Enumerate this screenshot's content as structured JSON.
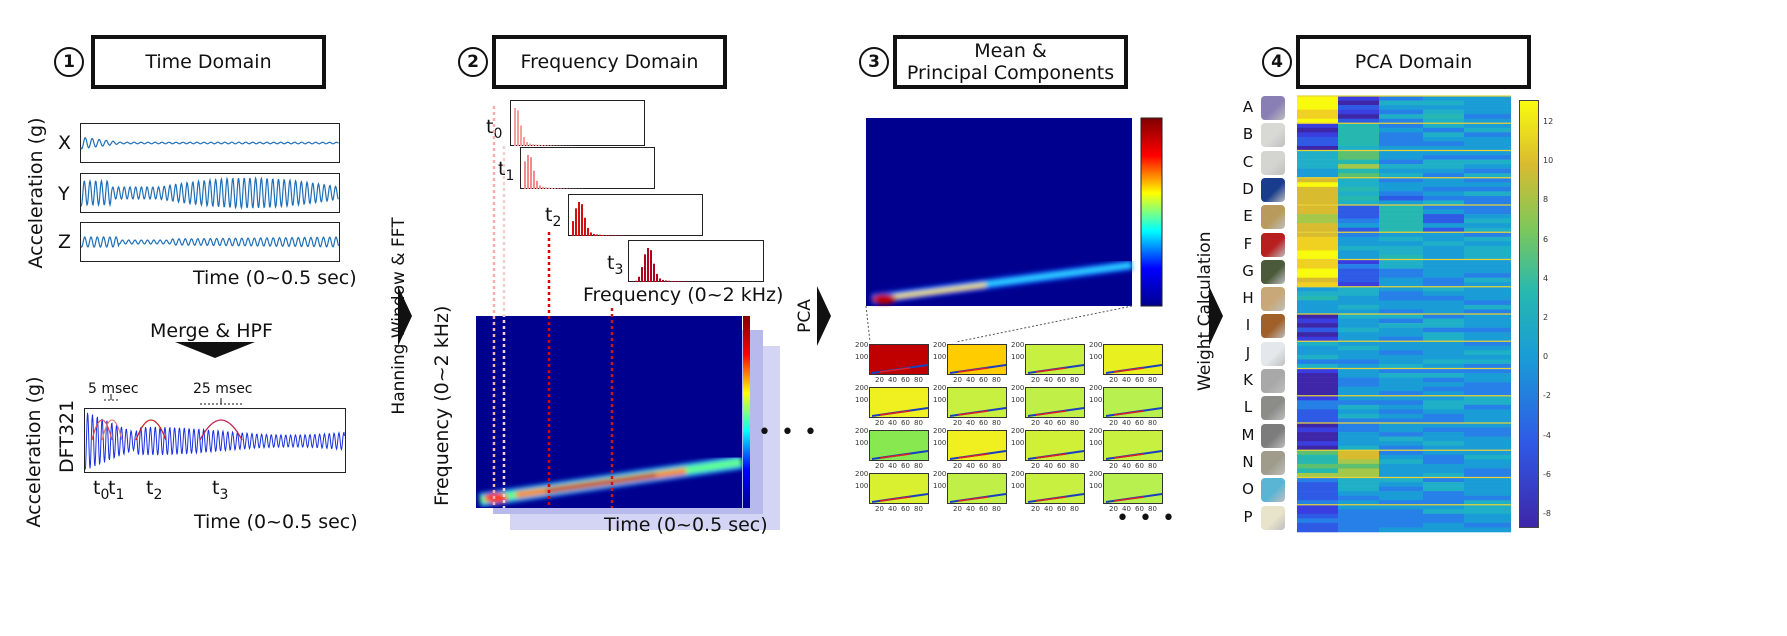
{
  "steps": [
    {
      "num": "1",
      "title": "Time Domain"
    },
    {
      "num": "2",
      "title": "Frequency Domain"
    },
    {
      "num": "3",
      "title_line1": "Mean &",
      "title_line2": "Principal Components"
    },
    {
      "num": "4",
      "title": "PCA Domain"
    }
  ],
  "time_domain": {
    "y_label": "Acceleration (g)",
    "axes": [
      "X",
      "Y",
      "Z"
    ],
    "x_label": "Time (0~0.5 sec)",
    "merge_label": "Merge & HPF",
    "dft_label": "DFT321",
    "y_label2": "Acceleration (g)",
    "x_label2": "Time (0~0.5 sec)",
    "win_5": "5 msec",
    "win_25": "25 msec",
    "t_marks": [
      "t",
      "t",
      "t",
      "t"
    ],
    "t_subs": [
      "0",
      "1",
      "2",
      "3"
    ]
  },
  "arrows": {
    "hanning": "Hanning Window & FFT",
    "pca": "PCA",
    "weight": "Weight Calculation"
  },
  "frequency_domain": {
    "spectra_labels": [
      "t",
      "t",
      "t",
      "t"
    ],
    "spectra_subs": [
      "0",
      "1",
      "2",
      "3"
    ],
    "freq_label": "Frequency (0~2 kHz)",
    "y_label": "Frequency (0~2 kHz)",
    "x_label": "Time (0~0.5 sec)",
    "ellipsis": "•••"
  },
  "principal": {
    "pc_ticks_y": [
      "200",
      "100"
    ],
    "pc_ticks_x": [
      "20",
      "40",
      "60",
      "80"
    ],
    "ellipsis": "•••"
  },
  "pca_domain": {
    "materials": [
      "A",
      "B",
      "C",
      "D",
      "E",
      "F",
      "G",
      "H",
      "I",
      "J",
      "K",
      "L",
      "M",
      "N",
      "O",
      "P"
    ],
    "material_colors": [
      "#8a7fb5",
      "#d8d8d4",
      "#d4d4d0",
      "#1a3c8c",
      "#b89a5c",
      "#b81f1f",
      "#4a5a3a",
      "#c8a878",
      "#a0602a",
      "#e4e8ec",
      "#a8a8a8",
      "#8c8c88",
      "#7c7c7c",
      "#a09c8c",
      "#5ab4d4",
      "#e8e4cc"
    ],
    "colorbar_ticks": [
      "12",
      "10",
      "8",
      "6",
      "4",
      "2",
      "0",
      "-2",
      "-4",
      "-6",
      "-8"
    ]
  },
  "colors": {
    "jet_dark": "#00008f",
    "accent_red": "#d40000",
    "signal_blue": "#1f6fb8"
  }
}
